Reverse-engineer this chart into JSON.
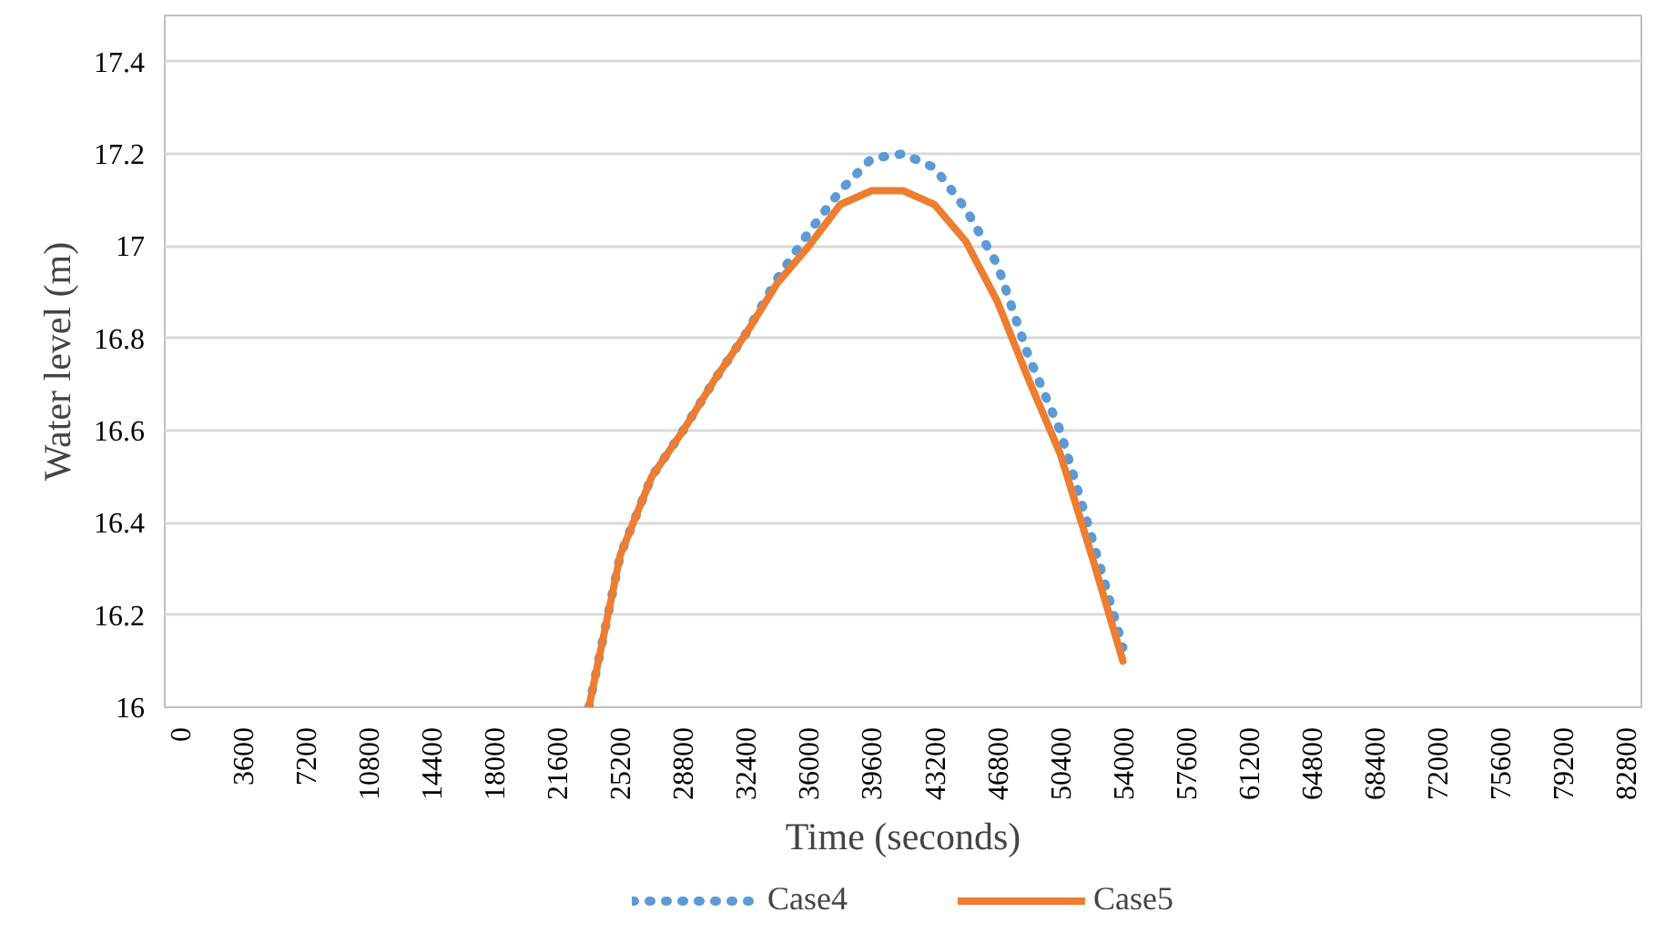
{
  "chart_data": {
    "type": "line",
    "xlabel": "Time (seconds)",
    "ylabel": "Water level (m)",
    "x": [
      23400,
      25200,
      27000,
      28800,
      30600,
      32400,
      34200,
      36000,
      37800,
      39600,
      41400,
      43200,
      45000,
      46800,
      48600,
      50400,
      52200,
      54000
    ],
    "series": [
      {
        "name": "Case4",
        "color": "#5b9bd5",
        "line_style": "dotted",
        "values": [
          16.0,
          16.33,
          16.5,
          16.6,
          16.71,
          16.81,
          16.93,
          17.03,
          17.12,
          17.19,
          17.2,
          17.17,
          17.08,
          16.96,
          16.76,
          16.6,
          16.37,
          16.13
        ]
      },
      {
        "name": "Case5",
        "color": "#ed7d31",
        "line_style": "solid",
        "values": [
          16.0,
          16.33,
          16.5,
          16.6,
          16.71,
          16.81,
          16.92,
          17.0,
          17.09,
          17.12,
          17.12,
          17.09,
          17.01,
          16.88,
          16.71,
          16.55,
          16.33,
          16.1
        ]
      }
    ],
    "xlim": [
      -900,
      83700
    ],
    "ylim": [
      16,
      17.5
    ],
    "xticks": [
      0,
      3600,
      7200,
      10800,
      14400,
      18000,
      21600,
      25200,
      28800,
      32400,
      36000,
      39600,
      43200,
      46800,
      50400,
      54000,
      57600,
      61200,
      64800,
      68400,
      72000,
      75600,
      79200,
      82800
    ],
    "yticks": [
      16,
      16.2,
      16.4,
      16.6,
      16.8,
      17,
      17.2,
      17.4
    ],
    "grid": "y",
    "legend": "bottom"
  }
}
